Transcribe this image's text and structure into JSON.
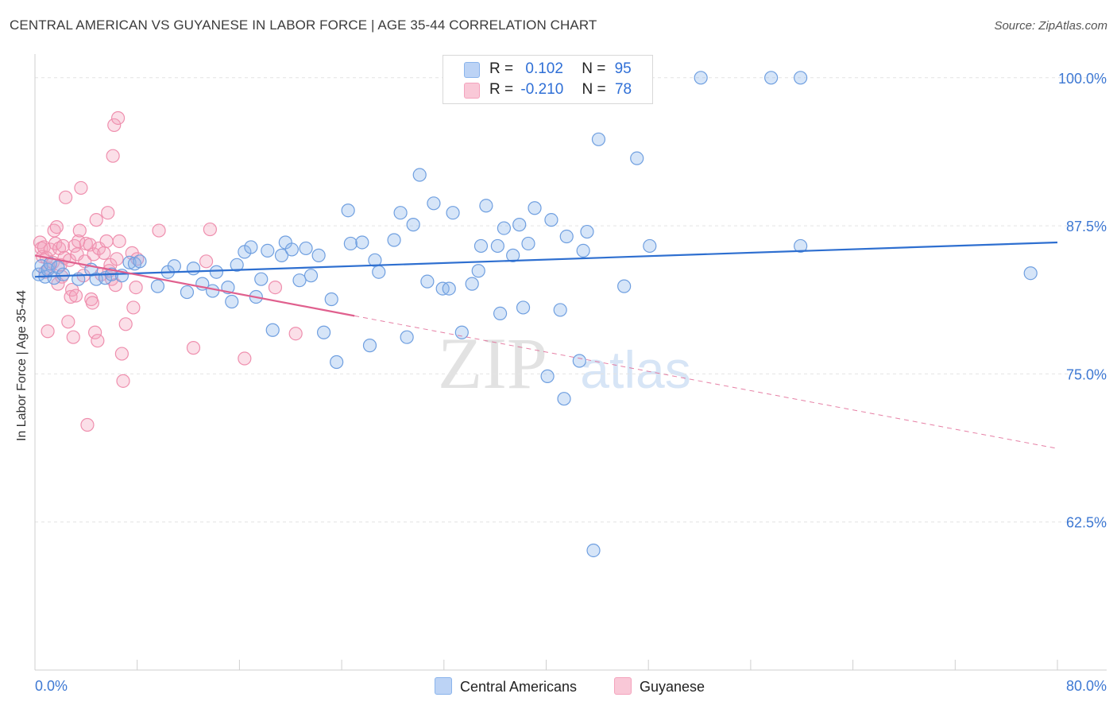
{
  "title": "CENTRAL AMERICAN VS GUYANESE IN LABOR FORCE | AGE 35-44 CORRELATION CHART",
  "source": "Source: ZipAtlas.com",
  "watermark": {
    "zip": "ZIP",
    "atlas": "atlas"
  },
  "legend": {
    "rows": [
      {
        "r_label": "R =",
        "r_value": "0.102",
        "n_label": "N =",
        "n_value": "95"
      },
      {
        "r_label": "R =",
        "r_value": "-0.210",
        "n_label": "N =",
        "n_value": "78"
      }
    ]
  },
  "chart_data": {
    "type": "scatter",
    "title": "CENTRAL AMERICAN VS GUYANESE IN LABOR FORCE | AGE 35-44 CORRELATION CHART",
    "xlabel": "",
    "ylabel": "In Labor Force | Age 35-44",
    "xlim": [
      0,
      80
    ],
    "ylim": [
      50,
      102
    ],
    "x_tick_labels": [
      "0.0%",
      "80.0%"
    ],
    "y_ticks": [
      62.5,
      75.0,
      87.5,
      100.0
    ],
    "y_tick_labels": [
      "62.5%",
      "75.0%",
      "87.5%",
      "100.0%"
    ],
    "grid": true,
    "legend_position": "top-center",
    "series": [
      {
        "name": "Central Americans",
        "color": "#8ab4ec",
        "line_color": "#2e6fd0",
        "r": 0.102,
        "n": 95,
        "trend": {
          "x": [
            0,
            80
          ],
          "y": [
            83.2,
            86.1
          ]
        },
        "points": [
          [
            0.3,
            83.4
          ],
          [
            0.5,
            84.1
          ],
          [
            0.8,
            83.2
          ],
          [
            1.0,
            83.8
          ],
          [
            1.2,
            84.3
          ],
          [
            1.5,
            83.1
          ],
          [
            1.8,
            84.0
          ],
          [
            2.2,
            83.4
          ],
          [
            3.4,
            83.0
          ],
          [
            4.4,
            83.8
          ],
          [
            4.8,
            83.0
          ],
          [
            5.5,
            83.1
          ],
          [
            6.0,
            83.4
          ],
          [
            6.8,
            83.3
          ],
          [
            7.4,
            84.4
          ],
          [
            7.8,
            84.3
          ],
          [
            8.2,
            84.5
          ],
          [
            9.6,
            82.4
          ],
          [
            10.4,
            83.6
          ],
          [
            10.9,
            84.1
          ],
          [
            11.9,
            81.9
          ],
          [
            12.4,
            83.9
          ],
          [
            13.1,
            82.6
          ],
          [
            13.9,
            82.0
          ],
          [
            14.2,
            83.6
          ],
          [
            15.1,
            82.3
          ],
          [
            15.4,
            81.1
          ],
          [
            15.8,
            84.2
          ],
          [
            16.4,
            85.3
          ],
          [
            16.9,
            85.7
          ],
          [
            17.3,
            81.5
          ],
          [
            17.7,
            83.0
          ],
          [
            18.2,
            85.4
          ],
          [
            18.6,
            78.7
          ],
          [
            19.3,
            85.0
          ],
          [
            19.6,
            86.1
          ],
          [
            20.1,
            85.5
          ],
          [
            20.7,
            82.9
          ],
          [
            21.2,
            85.6
          ],
          [
            21.6,
            83.3
          ],
          [
            22.2,
            85.0
          ],
          [
            22.6,
            78.5
          ],
          [
            23.2,
            81.3
          ],
          [
            23.6,
            76.0
          ],
          [
            24.5,
            88.8
          ],
          [
            24.7,
            86.0
          ],
          [
            25.6,
            86.1
          ],
          [
            26.2,
            77.4
          ],
          [
            26.6,
            84.6
          ],
          [
            26.9,
            83.6
          ],
          [
            28.1,
            86.3
          ],
          [
            28.6,
            88.6
          ],
          [
            29.1,
            78.1
          ],
          [
            29.6,
            87.6
          ],
          [
            30.1,
            91.8
          ],
          [
            30.7,
            82.8
          ],
          [
            31.2,
            89.4
          ],
          [
            31.9,
            82.2
          ],
          [
            32.4,
            82.2
          ],
          [
            32.7,
            88.6
          ],
          [
            33.4,
            78.5
          ],
          [
            34.2,
            82.6
          ],
          [
            34.7,
            83.7
          ],
          [
            34.9,
            85.8
          ],
          [
            35.3,
            89.2
          ],
          [
            36.2,
            85.8
          ],
          [
            36.4,
            80.1
          ],
          [
            36.7,
            87.3
          ],
          [
            37.4,
            85.0
          ],
          [
            37.9,
            87.6
          ],
          [
            38.2,
            80.6
          ],
          [
            38.6,
            86.0
          ],
          [
            39.1,
            89.0
          ],
          [
            40.1,
            74.8
          ],
          [
            40.4,
            88.0
          ],
          [
            41.1,
            80.4
          ],
          [
            41.4,
            72.9
          ],
          [
            41.6,
            86.6
          ],
          [
            42.6,
            76.1
          ],
          [
            42.9,
            85.4
          ],
          [
            43.2,
            87.0
          ],
          [
            43.7,
            60.1
          ],
          [
            44.1,
            94.8
          ],
          [
            46.1,
            82.4
          ],
          [
            47.1,
            93.2
          ],
          [
            48.1,
            85.8
          ],
          [
            52.1,
            100.0
          ],
          [
            57.6,
            100.0
          ],
          [
            59.9,
            100.0
          ],
          [
            59.9,
            85.8
          ],
          [
            77.9,
            83.5
          ]
        ]
      },
      {
        "name": "Guyanese",
        "color": "#f4a3bd",
        "line_color": "#e0608e",
        "r": -0.21,
        "n": 78,
        "trend": {
          "x": [
            0,
            25
          ],
          "y": [
            85.0,
            79.9
          ]
        },
        "trend_dashed": {
          "x": [
            25,
            80
          ],
          "y": [
            79.9,
            68.7
          ]
        },
        "points": [
          [
            0.4,
            86.1
          ],
          [
            0.5,
            85.6
          ],
          [
            0.6,
            84.9
          ],
          [
            0.7,
            85.7
          ],
          [
            0.8,
            83.6
          ],
          [
            0.9,
            84.8
          ],
          [
            1.0,
            78.6
          ],
          [
            1.1,
            83.9
          ],
          [
            1.2,
            85.5
          ],
          [
            1.4,
            84.4
          ],
          [
            1.5,
            87.1
          ],
          [
            1.6,
            86.0
          ],
          [
            1.7,
            87.4
          ],
          [
            1.8,
            82.6
          ],
          [
            1.9,
            85.6
          ],
          [
            2.0,
            84.2
          ],
          [
            2.1,
            83.2
          ],
          [
            2.2,
            85.8
          ],
          [
            2.3,
            84.8
          ],
          [
            2.4,
            89.9
          ],
          [
            2.6,
            79.4
          ],
          [
            2.7,
            84.6
          ],
          [
            2.8,
            81.5
          ],
          [
            2.9,
            82.1
          ],
          [
            3.0,
            78.1
          ],
          [
            3.1,
            85.8
          ],
          [
            3.2,
            81.6
          ],
          [
            3.3,
            85.1
          ],
          [
            3.4,
            86.2
          ],
          [
            3.5,
            87.1
          ],
          [
            3.6,
            90.7
          ],
          [
            3.8,
            83.3
          ],
          [
            3.9,
            84.5
          ],
          [
            4.0,
            86.0
          ],
          [
            4.1,
            70.7
          ],
          [
            4.3,
            85.9
          ],
          [
            4.4,
            81.3
          ],
          [
            4.5,
            81.0
          ],
          [
            4.6,
            85.1
          ],
          [
            4.7,
            78.5
          ],
          [
            4.8,
            88.0
          ],
          [
            4.9,
            77.8
          ],
          [
            5.0,
            85.6
          ],
          [
            5.2,
            83.4
          ],
          [
            5.4,
            85.2
          ],
          [
            5.6,
            86.2
          ],
          [
            5.7,
            88.6
          ],
          [
            5.8,
            83.7
          ],
          [
            5.9,
            84.2
          ],
          [
            6.0,
            83.0
          ],
          [
            6.1,
            93.4
          ],
          [
            6.2,
            96.0
          ],
          [
            6.3,
            82.5
          ],
          [
            6.4,
            84.7
          ],
          [
            6.5,
            96.6
          ],
          [
            6.6,
            86.2
          ],
          [
            6.8,
            76.7
          ],
          [
            6.9,
            74.4
          ],
          [
            7.1,
            79.2
          ],
          [
            7.6,
            85.2
          ],
          [
            7.7,
            80.6
          ],
          [
            7.9,
            82.3
          ],
          [
            8.0,
            84.7
          ],
          [
            9.7,
            87.1
          ],
          [
            12.4,
            77.2
          ],
          [
            13.4,
            84.5
          ],
          [
            13.7,
            87.2
          ],
          [
            16.4,
            76.3
          ],
          [
            18.8,
            82.3
          ],
          [
            20.4,
            78.4
          ]
        ]
      }
    ]
  }
}
